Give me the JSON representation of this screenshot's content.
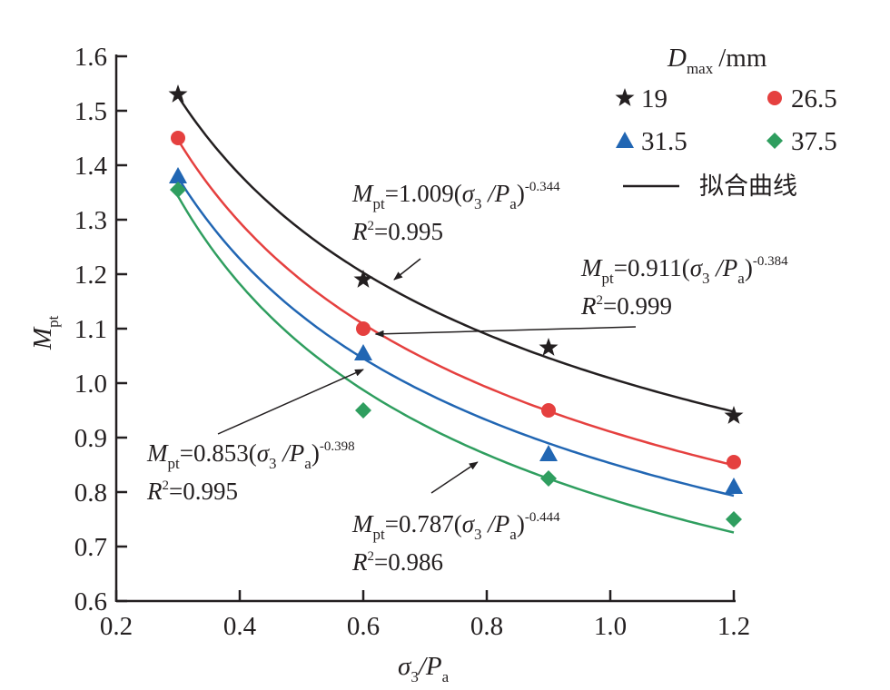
{
  "chart_data": {
    "type": "scatter",
    "title": "",
    "xlabel": "σ3/Pa",
    "xlabel_parts": {
      "main": "σ",
      "sub1": "3",
      "slash": "/P",
      "sub2": "a"
    },
    "ylabel": "Mpt",
    "ylabel_parts": {
      "main": "M",
      "sub": "pt"
    },
    "xlim": [
      0.2,
      1.2
    ],
    "ylim": [
      0.6,
      1.6
    ],
    "xticks": [
      0.2,
      0.4,
      0.6,
      0.8,
      1.0,
      1.2
    ],
    "xtick_labels": [
      "0.2",
      "0.4",
      "0.6",
      "0.8",
      "1.0",
      "1.2"
    ],
    "yticks": [
      0.6,
      0.7,
      0.8,
      0.9,
      1.0,
      1.1,
      1.2,
      1.3,
      1.4,
      1.5,
      1.6
    ],
    "ytick_labels": [
      "0.6",
      "0.7",
      "0.8",
      "0.9",
      "1.0",
      "1.1",
      "1.2",
      "1.3",
      "1.4",
      "1.5",
      "1.6"
    ],
    "grid": false,
    "legend": {
      "position": "top-right",
      "title_main": "D",
      "title_sub": "max",
      "title_unit": "/mm",
      "fit_label": "拟合曲线"
    },
    "series": [
      {
        "name": "19",
        "marker": "star",
        "color": "#231f20",
        "x": [
          0.3,
          0.6,
          0.9,
          1.2
        ],
        "y": [
          1.53,
          1.19,
          1.065,
          0.94
        ],
        "fit": {
          "a": 1.009,
          "b": -0.344,
          "r2": 0.995
        }
      },
      {
        "name": "26.5",
        "marker": "circle",
        "color": "#e5403f",
        "x": [
          0.3,
          0.6,
          0.9,
          1.2
        ],
        "y": [
          1.45,
          1.1,
          0.95,
          0.855
        ],
        "fit": {
          "a": 0.911,
          "b": -0.384,
          "r2": 0.999
        }
      },
      {
        "name": "31.5",
        "marker": "triangle",
        "color": "#2166b3",
        "x": [
          0.3,
          0.6,
          0.9,
          1.2
        ],
        "y": [
          1.38,
          1.055,
          0.87,
          0.81
        ],
        "fit": {
          "a": 0.853,
          "b": -0.398,
          "r2": 0.995
        }
      },
      {
        "name": "37.5",
        "marker": "diamond",
        "color": "#2f9e5f",
        "x": [
          0.3,
          0.6,
          0.9,
          1.2
        ],
        "y": [
          1.355,
          0.95,
          0.825,
          0.75
        ],
        "fit": {
          "a": 0.787,
          "b": -0.444,
          "r2": 0.986
        }
      }
    ],
    "annotations": [
      {
        "series": "19",
        "coef": "1.009",
        "exp": "-0.344",
        "r2": "0.995",
        "arrow_to": [
          0.65,
          1.19
        ]
      },
      {
        "series": "26.5",
        "coef": "0.911",
        "exp": "-0.384",
        "r2": "0.999",
        "arrow_to": [
          0.62,
          1.09
        ]
      },
      {
        "series": "31.5",
        "coef": "0.853",
        "exp": "-0.398",
        "r2": "0.995",
        "arrow_to": [
          0.6,
          1.025
        ]
      },
      {
        "series": "37.5",
        "coef": "0.787",
        "exp": "-0.444",
        "r2": "0.986",
        "arrow_to": [
          0.785,
          0.855
        ]
      }
    ],
    "eq_parts": {
      "lhs_main": "M",
      "lhs_sub": "pt",
      "eq": "=",
      "open": "(",
      "sigma": "σ",
      "three": "3",
      "slash": " /P",
      "a": "a",
      "close": ")",
      "r": "R",
      "two": "2"
    }
  }
}
